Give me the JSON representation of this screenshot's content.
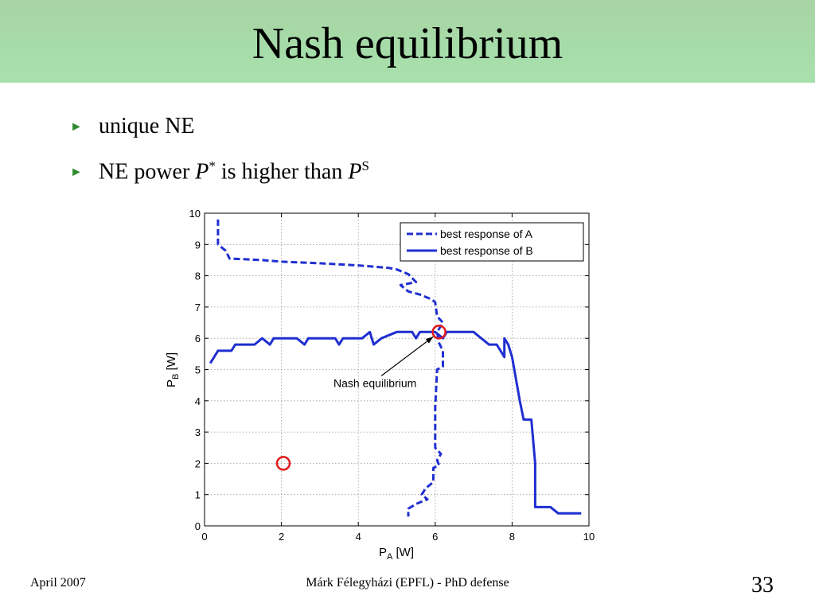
{
  "slide": {
    "title": "Nash equilibrium",
    "bullets": [
      {
        "text": "unique NE"
      },
      {
        "pre": "NE power ",
        "sym1": "P",
        "sup1": "*",
        "mid": " is higher than ",
        "sym2": "P",
        "sup2": "S"
      }
    ],
    "footer": {
      "date": "April 2007",
      "center": "Márk Félegyházi (EPFL) - PhD defense",
      "page": "33"
    }
  },
  "chart_data": {
    "type": "line",
    "title": "",
    "xlabel": "P_A [W]",
    "ylabel": "P_B [W]",
    "xlabel_main": "P",
    "xlabel_sub": "A",
    "xlabel_unit": " [W]",
    "ylabel_main": "P",
    "ylabel_sub": "B",
    "ylabel_unit": " [W]",
    "xlim": [
      0,
      10
    ],
    "ylim": [
      0,
      10
    ],
    "xticks": [
      "0",
      "2",
      "4",
      "6",
      "8",
      "10"
    ],
    "yticks": [
      "0",
      "1",
      "2",
      "3",
      "4",
      "5",
      "6",
      "7",
      "8",
      "9",
      "10"
    ],
    "grid": true,
    "legend": {
      "location": "top-right"
    },
    "series": [
      {
        "name": "best response of A",
        "style": "dashed",
        "color": "#1f2fd0",
        "points": [
          [
            0.35,
            9.8
          ],
          [
            0.35,
            9.0
          ],
          [
            0.55,
            8.8
          ],
          [
            0.65,
            8.55
          ],
          [
            1.5,
            8.5
          ],
          [
            2.0,
            8.45
          ],
          [
            3.0,
            8.4
          ],
          [
            4.0,
            8.33
          ],
          [
            4.8,
            8.25
          ],
          [
            5.0,
            8.2
          ],
          [
            5.3,
            8.05
          ],
          [
            5.5,
            7.8
          ],
          [
            5.1,
            7.7
          ],
          [
            5.3,
            7.5
          ],
          [
            5.6,
            7.4
          ],
          [
            5.9,
            7.25
          ],
          [
            6.0,
            7.15
          ],
          [
            6.05,
            6.7
          ],
          [
            6.2,
            6.5
          ],
          [
            6.05,
            6.2
          ],
          [
            6.1,
            5.85
          ],
          [
            6.2,
            5.6
          ],
          [
            6.2,
            5.1
          ],
          [
            6.05,
            5.0
          ],
          [
            6.0,
            3.8
          ],
          [
            6.0,
            2.5
          ],
          [
            6.15,
            2.3
          ],
          [
            6.05,
            2.1
          ],
          [
            6.1,
            1.95
          ],
          [
            5.95,
            1.85
          ],
          [
            5.95,
            1.4
          ],
          [
            5.75,
            1.2
          ],
          [
            5.65,
            1.0
          ],
          [
            5.8,
            0.85
          ],
          [
            5.5,
            0.7
          ],
          [
            5.3,
            0.55
          ],
          [
            5.3,
            0.3
          ]
        ]
      },
      {
        "name": "best response of B",
        "style": "solid",
        "color": "#1f2fd0",
        "points": [
          [
            0.15,
            5.2
          ],
          [
            0.35,
            5.6
          ],
          [
            0.7,
            5.6
          ],
          [
            0.8,
            5.8
          ],
          [
            1.3,
            5.8
          ],
          [
            1.5,
            6.0
          ],
          [
            1.7,
            5.8
          ],
          [
            1.8,
            6.0
          ],
          [
            2.4,
            6.0
          ],
          [
            2.6,
            5.8
          ],
          [
            2.7,
            6.0
          ],
          [
            3.4,
            6.0
          ],
          [
            3.5,
            5.8
          ],
          [
            3.6,
            6.0
          ],
          [
            4.1,
            6.0
          ],
          [
            4.3,
            6.2
          ],
          [
            4.4,
            5.8
          ],
          [
            4.6,
            6.0
          ],
          [
            5.0,
            6.2
          ],
          [
            5.4,
            6.2
          ],
          [
            5.5,
            6.0
          ],
          [
            5.6,
            6.2
          ],
          [
            6.0,
            6.2
          ],
          [
            6.2,
            6.0
          ],
          [
            6.3,
            6.2
          ],
          [
            7.0,
            6.2
          ],
          [
            7.1,
            6.1
          ],
          [
            7.4,
            5.8
          ],
          [
            7.6,
            5.8
          ],
          [
            7.7,
            5.6
          ],
          [
            7.8,
            5.4
          ],
          [
            7.8,
            6.0
          ],
          [
            7.9,
            5.8
          ],
          [
            8.0,
            5.4
          ],
          [
            8.2,
            4.0
          ],
          [
            8.3,
            3.4
          ],
          [
            8.5,
            3.4
          ],
          [
            8.6,
            2.0
          ],
          [
            8.6,
            0.8
          ],
          [
            8.6,
            0.6
          ],
          [
            9.0,
            0.6
          ],
          [
            9.2,
            0.4
          ],
          [
            9.8,
            0.4
          ]
        ]
      }
    ],
    "markers": [
      {
        "name": "Nash equilibrium point",
        "x": 6.1,
        "y": 6.2,
        "color": "#e01b1b"
      },
      {
        "name": "reference point",
        "x": 2.05,
        "y": 2.0,
        "color": "#e01b1b"
      }
    ],
    "annotation": {
      "text": "Nash equilibrium",
      "from": [
        4.6,
        4.8
      ],
      "to": [
        5.95,
        6.05
      ]
    }
  }
}
